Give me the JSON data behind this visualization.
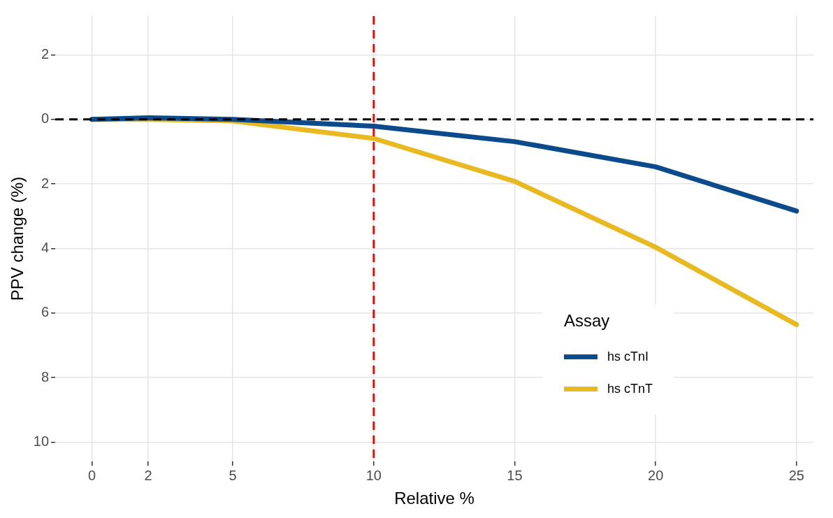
{
  "chart_data": {
    "type": "line",
    "xlabel": "Relative %",
    "ylabel": "PPV change (%)",
    "legend_title": "Assay",
    "legend": "bottom right",
    "grid": true,
    "x": [
      0,
      2,
      5,
      10,
      15,
      20,
      25
    ],
    "xlim": [
      -1.3,
      25.6
    ],
    "xticks": [
      0,
      2,
      5,
      10,
      15,
      20,
      25
    ],
    "ylim": [
      10.6,
      -3.2
    ],
    "yticks": [
      {
        "value": -2,
        "label": "2"
      },
      0,
      2,
      4,
      6,
      8,
      10
    ],
    "series": [
      {
        "name": "hs cTnI",
        "color": "#0b4a8b",
        "values": [
          0,
          -0.05,
          0,
          0.21,
          0.69,
          1.47,
          2.84
        ]
      },
      {
        "name": "hs cTnT",
        "color": "#e8b920",
        "values": [
          0,
          0,
          0.05,
          0.59,
          1.92,
          3.96,
          6.36
        ]
      }
    ],
    "ref_lines": [
      {
        "axis": "y",
        "value": 0,
        "color": "#000000",
        "line_style": "dashed"
      },
      {
        "axis": "x",
        "value": 10,
        "color": "#ff0000",
        "line_style": "dashed"
      }
    ]
  }
}
